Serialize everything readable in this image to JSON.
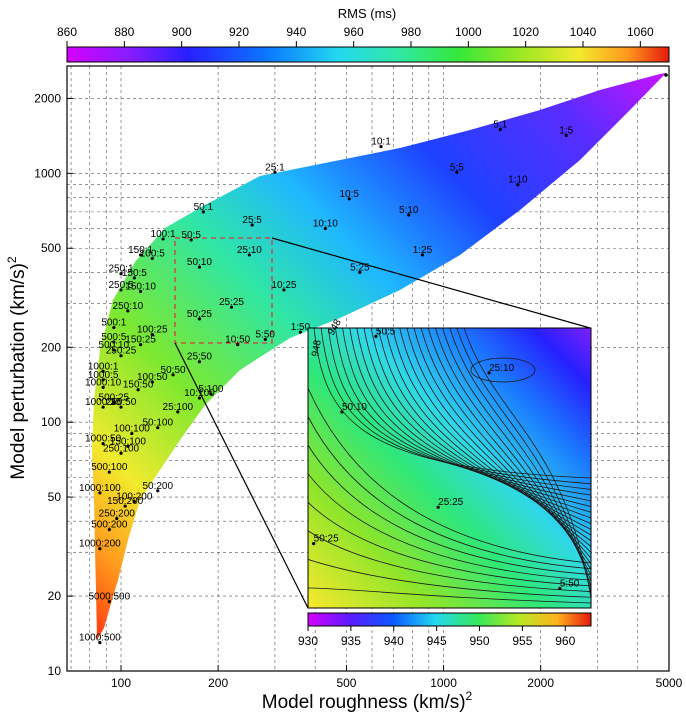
{
  "chart_data": {
    "type": "scatter",
    "xlabel": "Model roughness (km/s)",
    "xlabel_sup": "2",
    "ylabel": "Model perturbation (km/s)",
    "ylabel_sup": "2",
    "x_scale": "log",
    "y_scale": "log",
    "xlim": [
      68,
      5000
    ],
    "ylim": [
      10,
      2700
    ],
    "grid": true,
    "x_ticks": [
      {
        "v": 100,
        "label": "100"
      },
      {
        "v": 200,
        "label": "200"
      },
      {
        "v": 500,
        "label": "500"
      },
      {
        "v": 1000,
        "label": "1000"
      },
      {
        "v": 2000,
        "label": "2000"
      },
      {
        "v": 5000,
        "label": "5000"
      }
    ],
    "y_ticks": [
      {
        "v": 10,
        "label": "10"
      },
      {
        "v": 20,
        "label": "20"
      },
      {
        "v": 50,
        "label": "50"
      },
      {
        "v": 100,
        "label": "100"
      },
      {
        "v": 200,
        "label": "200"
      },
      {
        "v": 500,
        "label": "500"
      },
      {
        "v": 1000,
        "label": "1000"
      },
      {
        "v": 2000,
        "label": "2000"
      }
    ],
    "colorbar": {
      "label": "RMS (ms)",
      "min": 860,
      "max": 1070,
      "ticks": [
        "860",
        "880",
        "900",
        "920",
        "940",
        "960",
        "980",
        "1000",
        "1020",
        "1040",
        "1060"
      ],
      "tick_values": [
        860,
        880,
        900,
        920,
        940,
        960,
        980,
        1000,
        1020,
        1040,
        1060
      ]
    },
    "points": [
      {
        "label": "5:1",
        "x": 1500,
        "y": 1500
      },
      {
        "label": "1:5",
        "x": 2400,
        "y": 1420
      },
      {
        "label": "10:1",
        "x": 640,
        "y": 1280
      },
      {
        "label": "5:5",
        "x": 1100,
        "y": 1010
      },
      {
        "label": "1:10",
        "x": 1700,
        "y": 900
      },
      {
        "label": "25:1",
        "x": 300,
        "y": 1010
      },
      {
        "label": "10:5",
        "x": 510,
        "y": 790
      },
      {
        "label": "5:10",
        "x": 780,
        "y": 680
      },
      {
        "label": "50:1",
        "x": 180,
        "y": 700
      },
      {
        "label": "25:5",
        "x": 255,
        "y": 620
      },
      {
        "label": "10:10",
        "x": 430,
        "y": 600
      },
      {
        "label": "100:1",
        "x": 135,
        "y": 545
      },
      {
        "label": "50:5",
        "x": 165,
        "y": 540
      },
      {
        "label": "25:10",
        "x": 250,
        "y": 470
      },
      {
        "label": "150:1",
        "x": 115,
        "y": 470
      },
      {
        "label": "100:5",
        "x": 125,
        "y": 455
      },
      {
        "label": "50:10",
        "x": 175,
        "y": 420
      },
      {
        "label": "1:25",
        "x": 860,
        "y": 470
      },
      {
        "label": "5:25",
        "x": 550,
        "y": 400
      },
      {
        "label": "250:1",
        "x": 100,
        "y": 395
      },
      {
        "label": "150:5",
        "x": 110,
        "y": 380
      },
      {
        "label": "10:25",
        "x": 320,
        "y": 340
      },
      {
        "label": "250:5",
        "x": 100,
        "y": 340
      },
      {
        "label": "150:10",
        "x": 115,
        "y": 335
      },
      {
        "label": "25:25",
        "x": 220,
        "y": 290
      },
      {
        "label": "50:25",
        "x": 175,
        "y": 260
      },
      {
        "label": "250:10",
        "x": 105,
        "y": 280
      },
      {
        "label": "1:50",
        "x": 360,
        "y": 230
      },
      {
        "label": "500:1",
        "x": 95,
        "y": 240
      },
      {
        "label": "100:25",
        "x": 125,
        "y": 225
      },
      {
        "label": "500:5",
        "x": 95,
        "y": 210
      },
      {
        "label": "150:25",
        "x": 115,
        "y": 205
      },
      {
        "label": "5:50",
        "x": 280,
        "y": 215
      },
      {
        "label": "10:50",
        "x": 230,
        "y": 205
      },
      {
        "label": "25:50",
        "x": 175,
        "y": 175
      },
      {
        "label": "500:10",
        "x": 95,
        "y": 195
      },
      {
        "label": "250:25",
        "x": 100,
        "y": 185
      },
      {
        "label": "1000:1",
        "x": 88,
        "y": 160
      },
      {
        "label": "50:50",
        "x": 145,
        "y": 155
      },
      {
        "label": "1000:5",
        "x": 88,
        "y": 148
      },
      {
        "label": "100:50",
        "x": 125,
        "y": 145
      },
      {
        "label": "1000:10",
        "x": 88,
        "y": 138
      },
      {
        "label": "150:50",
        "x": 113,
        "y": 135
      },
      {
        "label": "10:100",
        "x": 175,
        "y": 125
      },
      {
        "label": "5:100",
        "x": 190,
        "y": 130
      },
      {
        "label": "25:100",
        "x": 150,
        "y": 110
      },
      {
        "label": "1000:25",
        "x": 88,
        "y": 115
      },
      {
        "label": "500:25",
        "x": 95,
        "y": 120
      },
      {
        "label": "250:50",
        "x": 100,
        "y": 115
      },
      {
        "label": "50:100",
        "x": 130,
        "y": 95
      },
      {
        "label": "100:100",
        "x": 108,
        "y": 90
      },
      {
        "label": "1000:50",
        "x": 88,
        "y": 82
      },
      {
        "label": "150:100",
        "x": 105,
        "y": 80
      },
      {
        "label": "250:100",
        "x": 100,
        "y": 75
      },
      {
        "label": "500:100",
        "x": 92,
        "y": 63
      },
      {
        "label": "50:200",
        "x": 130,
        "y": 53
      },
      {
        "label": "1000:100",
        "x": 86,
        "y": 52
      },
      {
        "label": "100:200",
        "x": 110,
        "y": 48
      },
      {
        "label": "150:200",
        "x": 103,
        "y": 46
      },
      {
        "label": "250:200",
        "x": 97,
        "y": 41
      },
      {
        "label": "500:200",
        "x": 92,
        "y": 37
      },
      {
        "label": "1000:200",
        "x": 86,
        "y": 31
      },
      {
        "label": "5000:500",
        "x": 92,
        "y": 19
      },
      {
        "label": "1000:500",
        "x": 86,
        "y": 13
      }
    ],
    "inset": {
      "xlim": [
        150,
        300
      ],
      "ylim": [
        205,
        550
      ],
      "colorbar": {
        "min": 930,
        "max": 963,
        "ticks": [
          "930",
          "935",
          "940",
          "945",
          "950",
          "955",
          "960"
        ],
        "tick_values": [
          930,
          935,
          940,
          945,
          950,
          955,
          960
        ]
      },
      "contour_labels": [
        "948",
        "948"
      ],
      "points": [
        {
          "label": "50:5",
          "fx": 0.24,
          "fy": 0.03
        },
        {
          "label": "25:10",
          "fx": 0.64,
          "fy": 0.16
        },
        {
          "label": "50:10",
          "fx": 0.12,
          "fy": 0.3
        },
        {
          "label": "25:25",
          "fx": 0.46,
          "fy": 0.64
        },
        {
          "label": "50:25",
          "fx": 0.02,
          "fy": 0.77
        },
        {
          "label": "5:50",
          "fx": 0.89,
          "fy": 0.93
        }
      ]
    }
  }
}
